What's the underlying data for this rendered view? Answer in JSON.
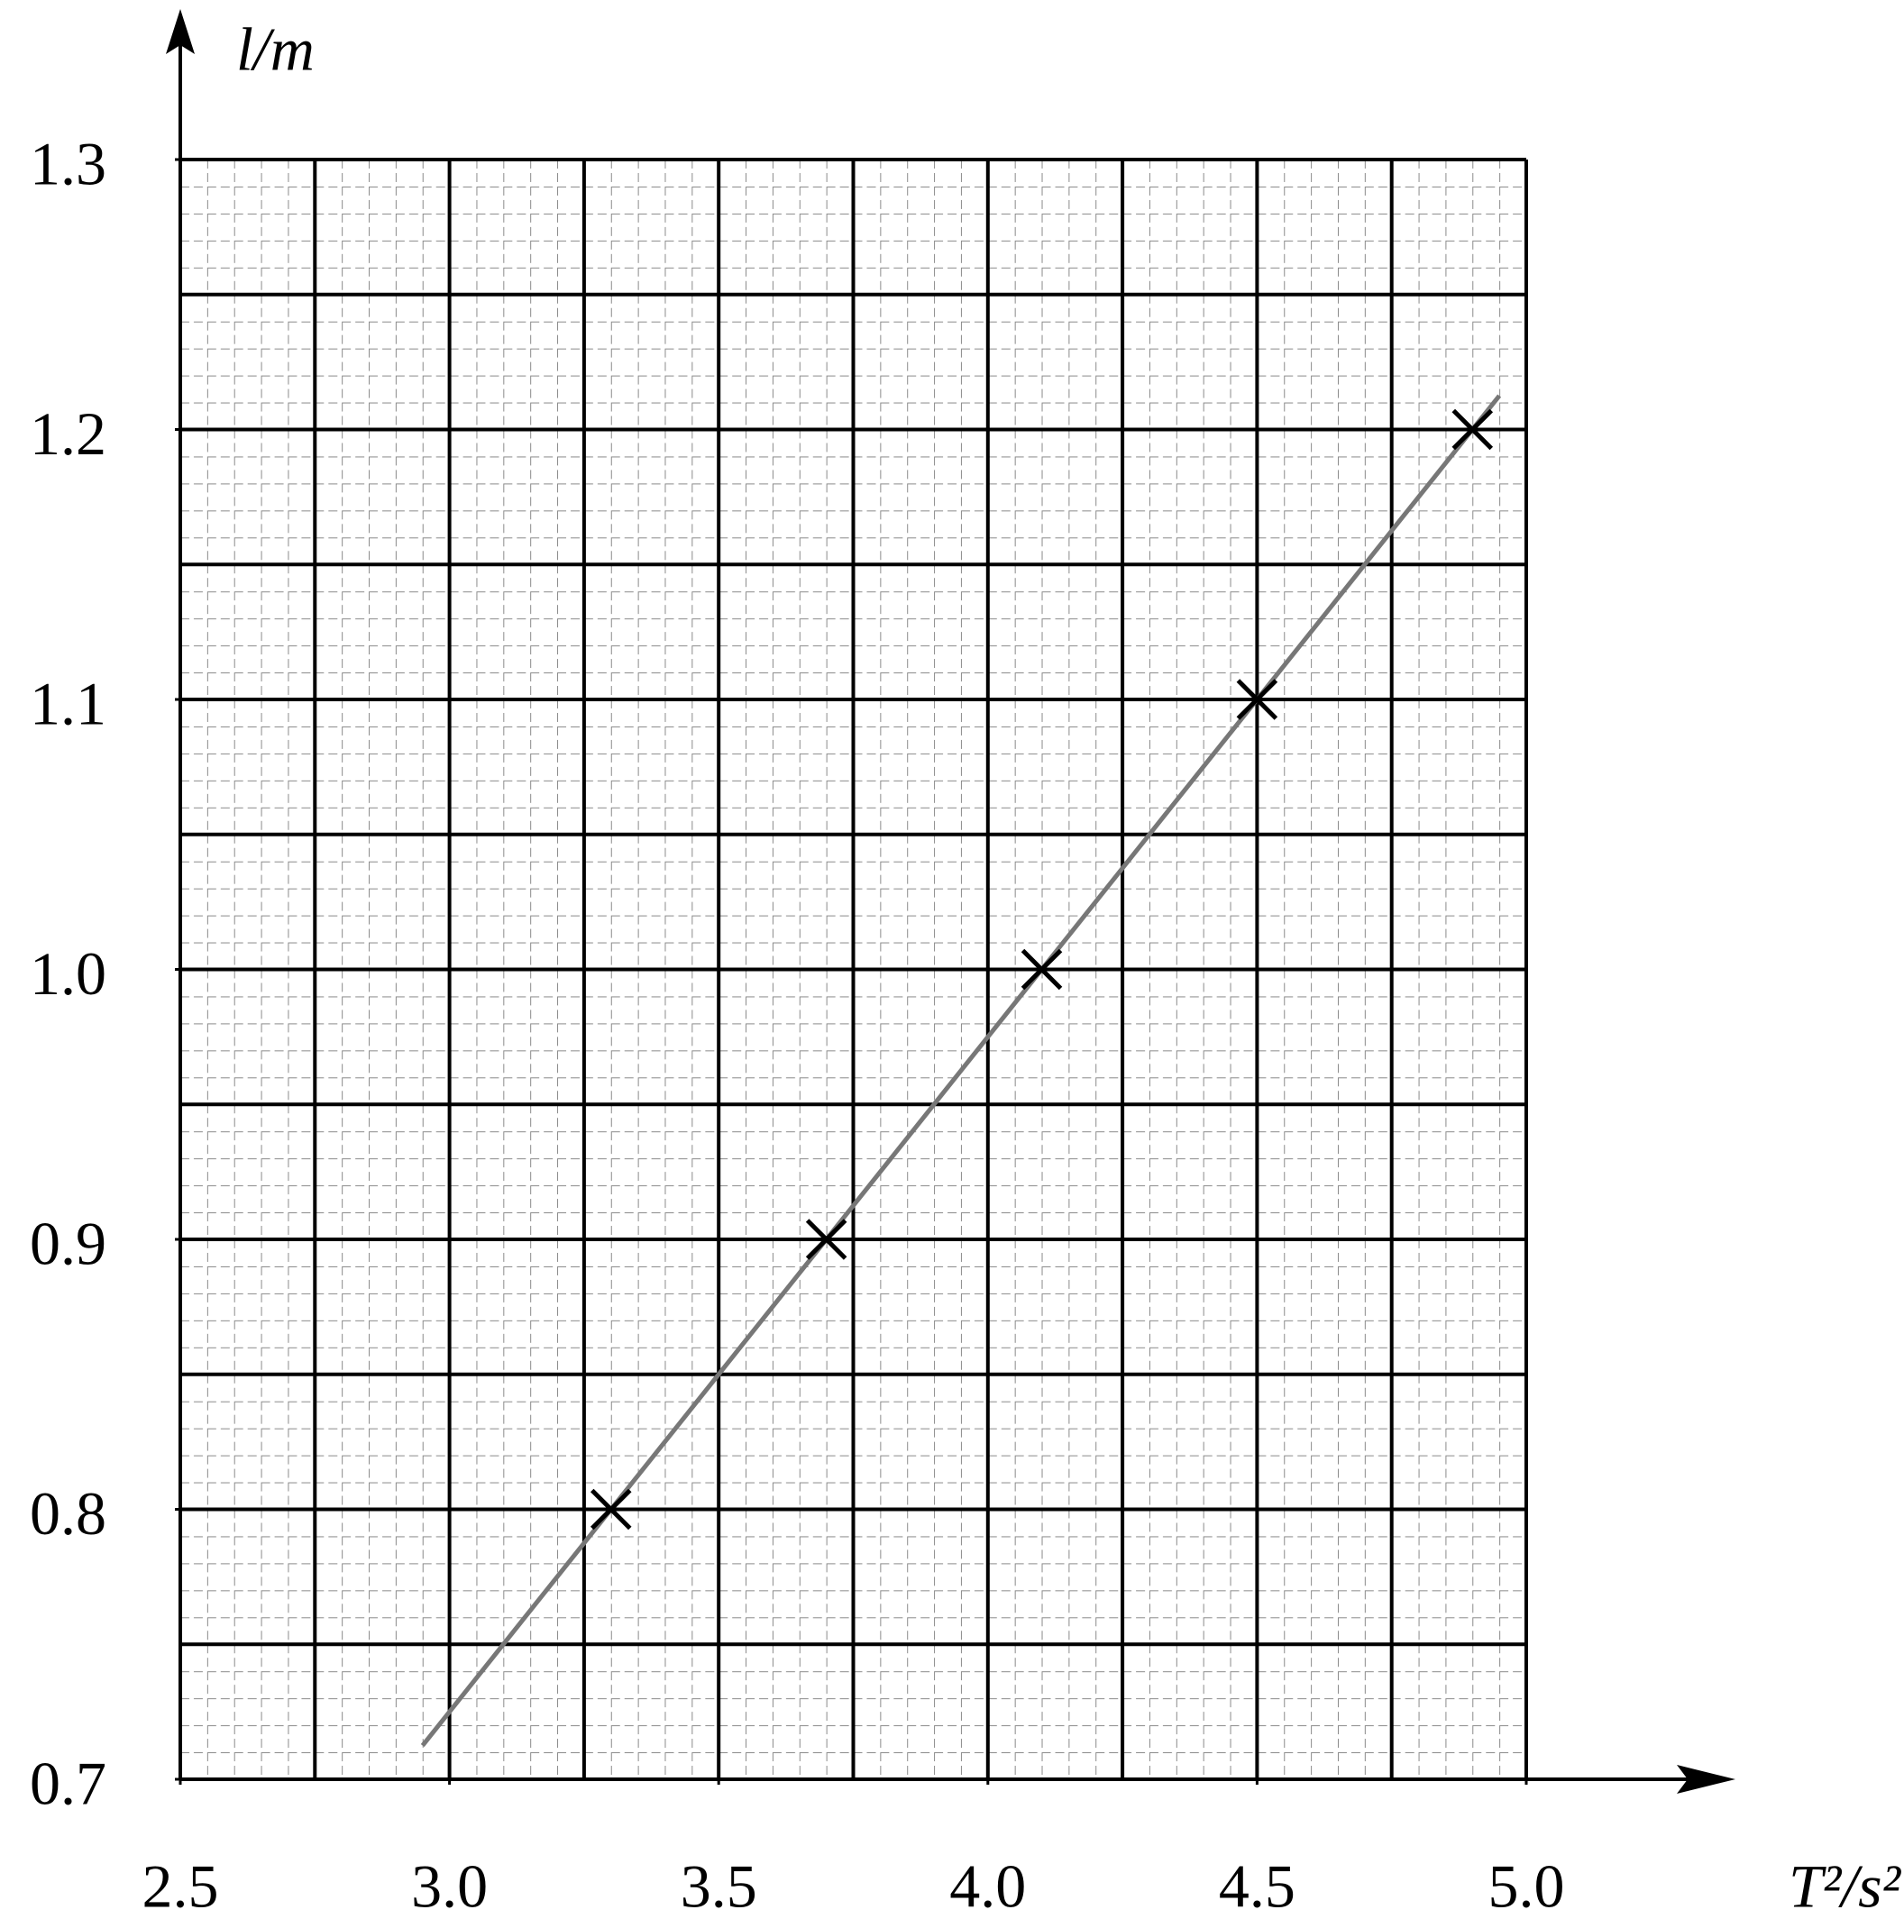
{
  "chart_data": {
    "type": "scatter",
    "y_label": "l/m",
    "x_label": "T²/s²",
    "xlim": [
      2.5,
      5.0
    ],
    "ylim": [
      0.7,
      1.3
    ],
    "xticks": [
      2.5,
      {
        "value": 3,
        "label": "3.0"
      },
      3.5,
      {
        "value": 4,
        "label": "4.0"
      },
      4.5,
      {
        "value": 5,
        "label": "5.0"
      }
    ],
    "yticks": [
      0.7,
      0.8,
      0.9,
      {
        "value": 1,
        "label": "1.0"
      },
      1.1,
      1.2,
      1.3
    ],
    "xgrid": [
      2.5,
      2.75,
      3,
      3.25,
      3.5,
      3.75,
      4,
      4.25,
      4.5,
      4.75,
      5
    ],
    "ygrid": [
      0.7,
      0.75,
      0.8,
      0.85,
      0.9,
      0.95,
      1,
      1.05,
      1.1,
      1.15,
      1.2,
      1.25,
      1.3
    ],
    "series": [
      {
        "x": [
          3.3,
          3.7,
          4.1,
          4.5,
          4.9
        ],
        "values": [
          0.8,
          0.9,
          1.0,
          1.1,
          1.2
        ],
        "color": "#000000",
        "marker": "x"
      }
    ],
    "fit_line": {
      "x": [
        2.95,
        4.95
      ],
      "values": [
        0.7125,
        1.2125
      ],
      "color": "#777777"
    }
  }
}
